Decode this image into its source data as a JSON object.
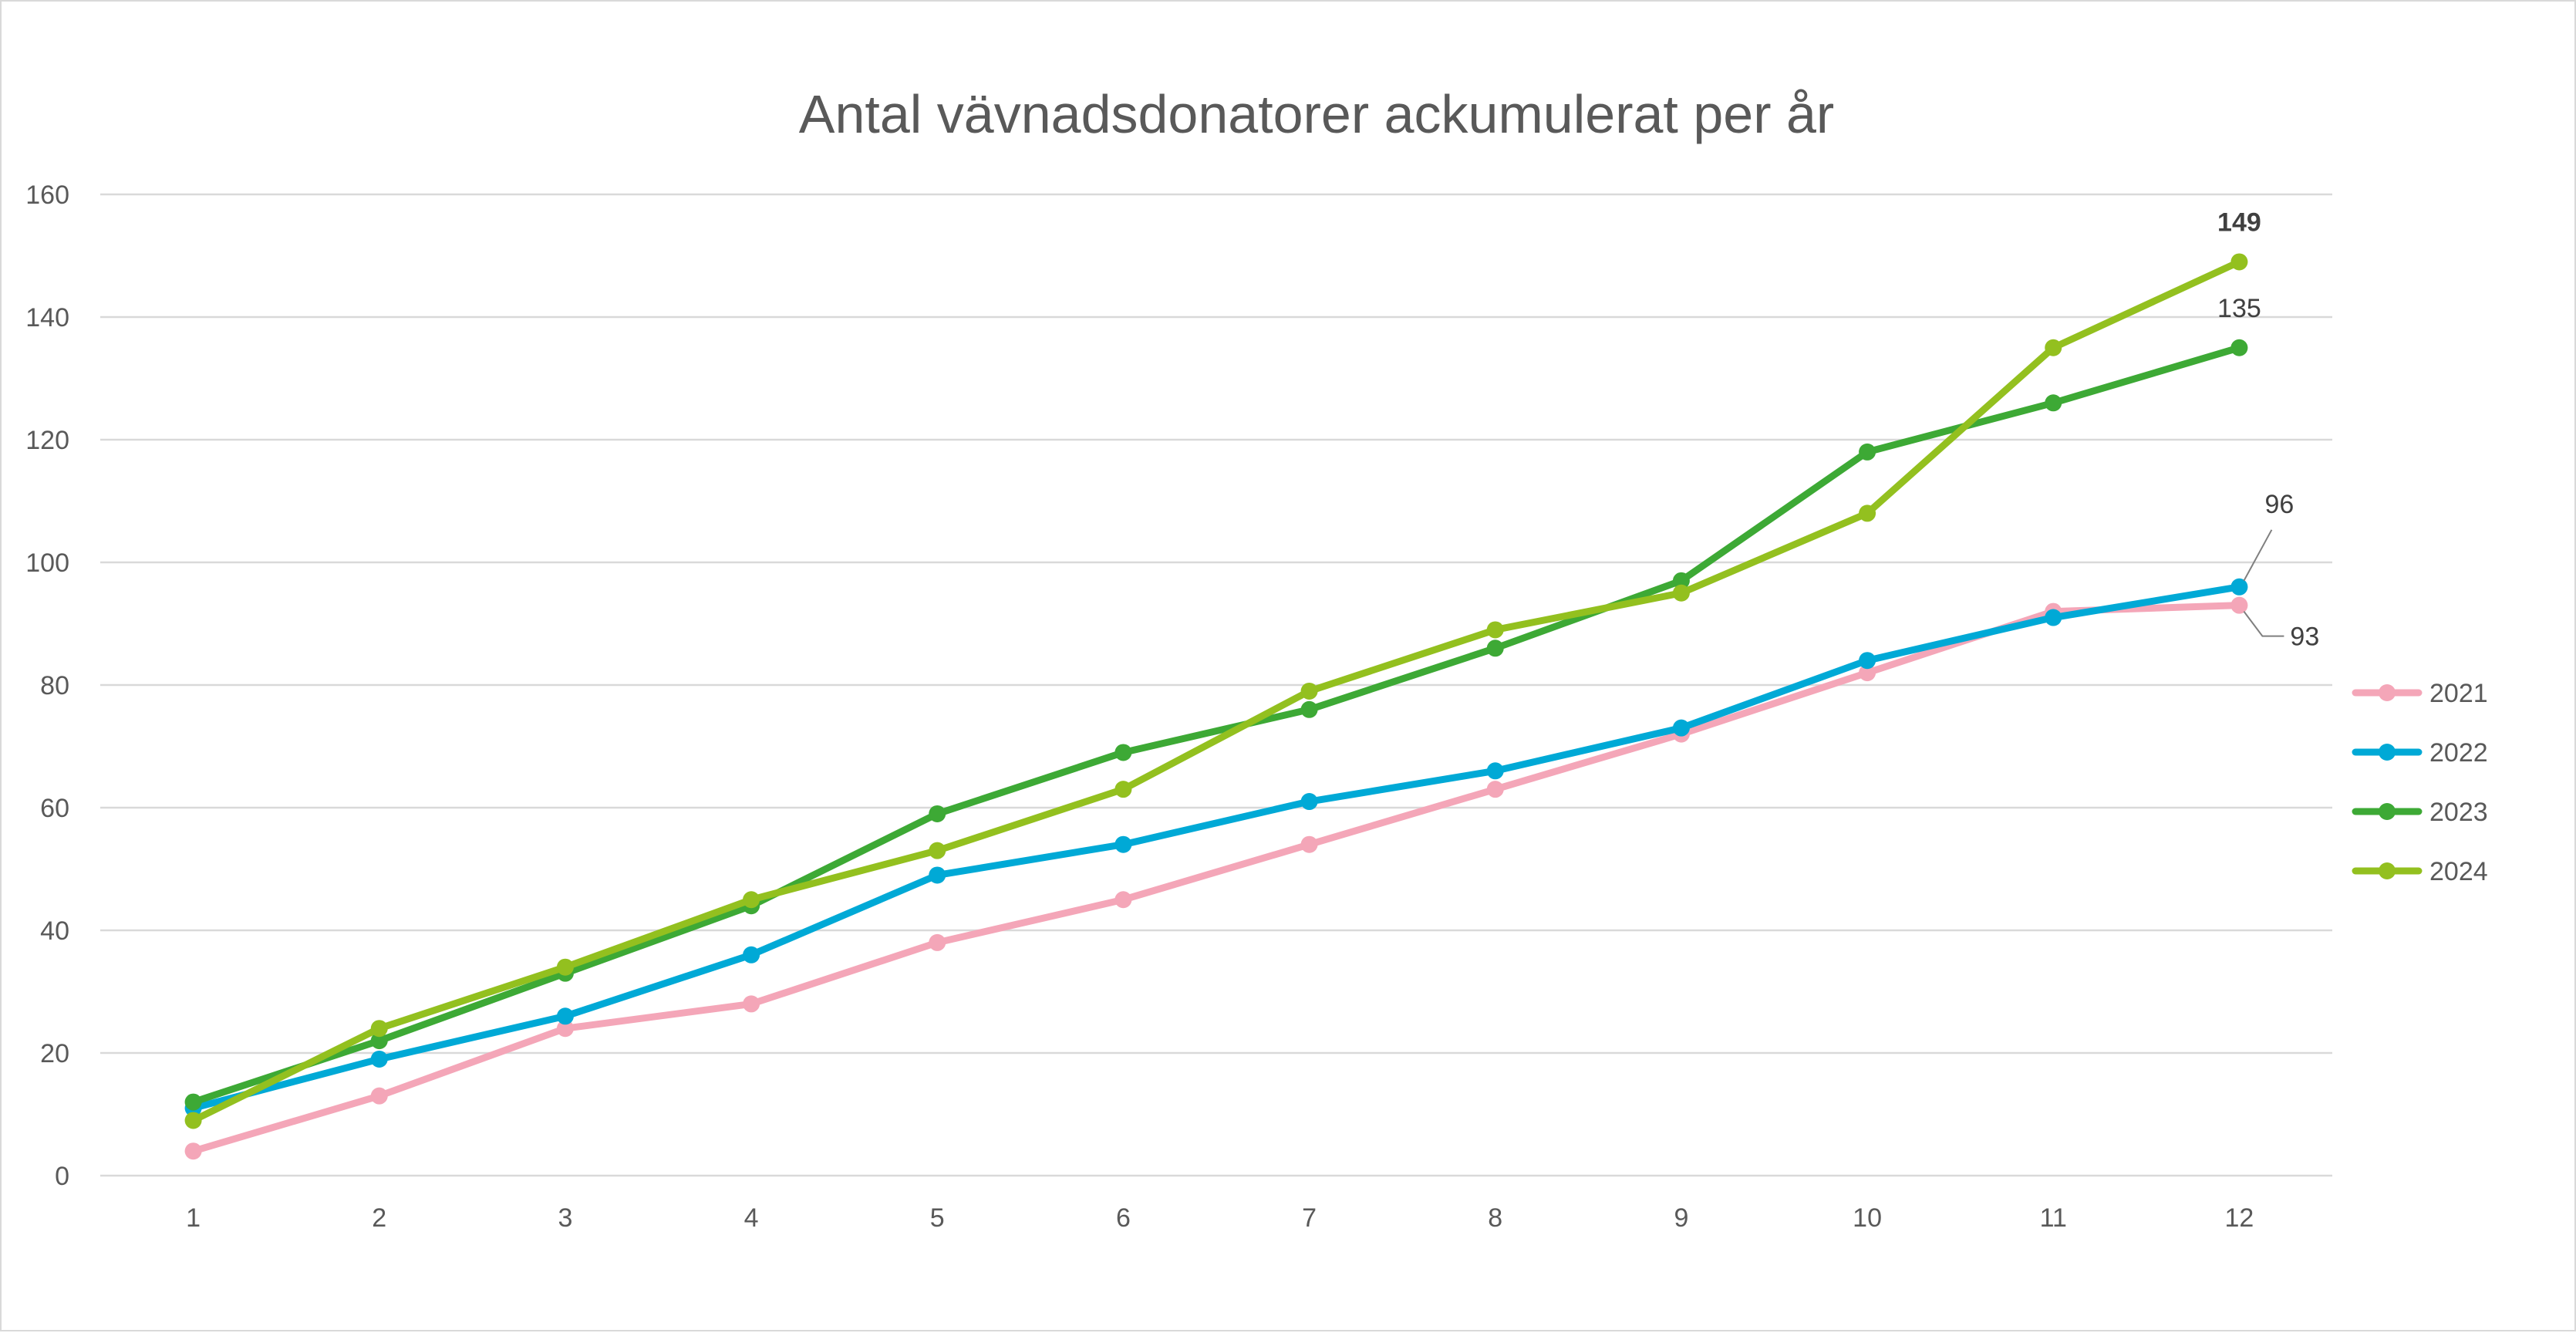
{
  "chart_data": {
    "type": "line",
    "title": "Antal vävnadsdonatorer ackumulerat per år",
    "xlabel": "",
    "ylabel": "",
    "x": [
      "1",
      "2",
      "3",
      "4",
      "5",
      "6",
      "7",
      "8",
      "9",
      "10",
      "11",
      "12"
    ],
    "ylim": [
      0,
      160
    ],
    "yticks": [
      "0",
      "20",
      "40",
      "60",
      "80",
      "100",
      "120",
      "140",
      "160"
    ],
    "grid": true,
    "legend_position": "right",
    "series": [
      {
        "name": "2021",
        "color": "#F4A6B8",
        "values": [
          4,
          13,
          24,
          28,
          38,
          45,
          54,
          63,
          72,
          82,
          92,
          93
        ]
      },
      {
        "name": "2022",
        "color": "#00A9D6",
        "values": [
          11,
          19,
          26,
          36,
          49,
          54,
          61,
          66,
          73,
          84,
          91,
          96
        ]
      },
      {
        "name": "2023",
        "color": "#3DA935",
        "values": [
          12,
          22,
          33,
          44,
          59,
          69,
          76,
          86,
          97,
          118,
          126,
          135
        ]
      },
      {
        "name": "2024",
        "color": "#93C01F",
        "values": [
          9,
          24,
          34,
          45,
          53,
          63,
          79,
          89,
          95,
          108,
          135,
          149
        ]
      }
    ],
    "data_labels": [
      {
        "series": "2024",
        "text": "149",
        "bold": true
      },
      {
        "series": "2023",
        "text": "135",
        "bold": false
      },
      {
        "series": "2022",
        "text": "96",
        "bold": false
      },
      {
        "series": "2021",
        "text": "93",
        "bold": false
      }
    ]
  }
}
